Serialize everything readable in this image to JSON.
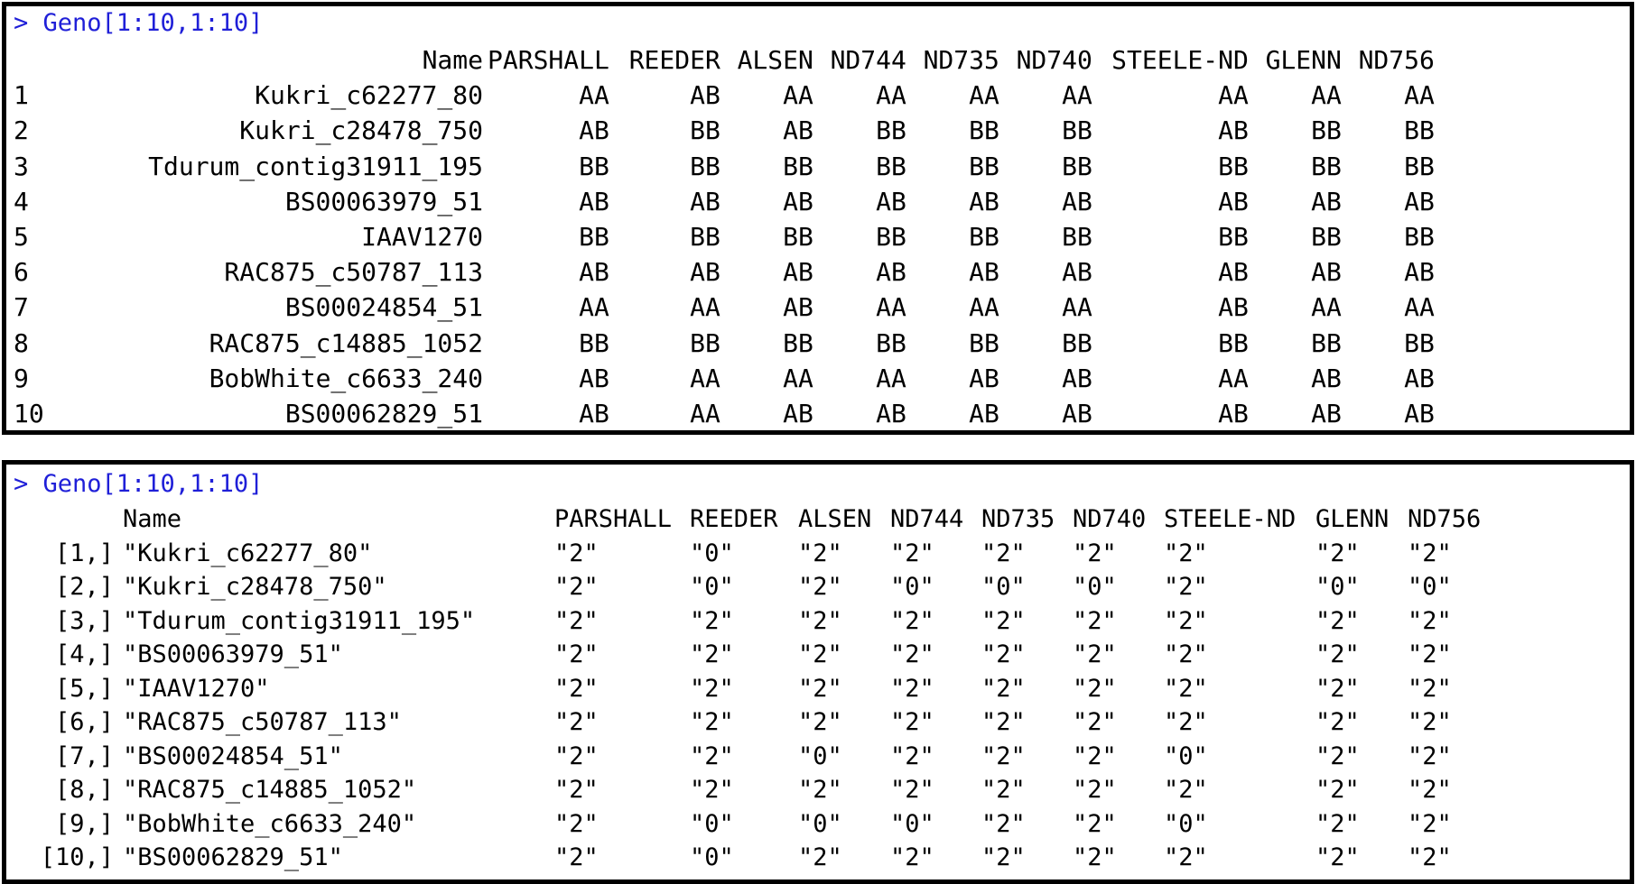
{
  "colors": {
    "prompt": "#1f1fd8",
    "text": "#000000",
    "border": "#000000"
  },
  "panel1": {
    "command": "> Geno[1:10,1:10]",
    "header": {
      "index": "",
      "name": "Name",
      "cols": [
        "PARSHALL",
        "REEDER",
        "ALSEN",
        "ND744",
        "ND735",
        "ND740",
        "STEELE-ND",
        "GLENN",
        "ND756"
      ]
    },
    "rows": [
      {
        "idx": "1",
        "name": "Kukri_c62277_80",
        "vals": [
          "AA",
          "AB",
          "AA",
          "AA",
          "AA",
          "AA",
          "AA",
          "AA",
          "AA"
        ]
      },
      {
        "idx": "2",
        "name": "Kukri_c28478_750",
        "vals": [
          "AB",
          "BB",
          "AB",
          "BB",
          "BB",
          "BB",
          "AB",
          "BB",
          "BB"
        ]
      },
      {
        "idx": "3",
        "name": "Tdurum_contig31911_195",
        "vals": [
          "BB",
          "BB",
          "BB",
          "BB",
          "BB",
          "BB",
          "BB",
          "BB",
          "BB"
        ]
      },
      {
        "idx": "4",
        "name": "BS00063979_51",
        "vals": [
          "AB",
          "AB",
          "AB",
          "AB",
          "AB",
          "AB",
          "AB",
          "AB",
          "AB"
        ]
      },
      {
        "idx": "5",
        "name": "IAAV1270",
        "vals": [
          "BB",
          "BB",
          "BB",
          "BB",
          "BB",
          "BB",
          "BB",
          "BB",
          "BB"
        ]
      },
      {
        "idx": "6",
        "name": "RAC875_c50787_113",
        "vals": [
          "AB",
          "AB",
          "AB",
          "AB",
          "AB",
          "AB",
          "AB",
          "AB",
          "AB"
        ]
      },
      {
        "idx": "7",
        "name": "BS00024854_51",
        "vals": [
          "AA",
          "AA",
          "AB",
          "AA",
          "AA",
          "AA",
          "AB",
          "AA",
          "AA"
        ]
      },
      {
        "idx": "8",
        "name": "RAC875_c14885_1052",
        "vals": [
          "BB",
          "BB",
          "BB",
          "BB",
          "BB",
          "BB",
          "BB",
          "BB",
          "BB"
        ]
      },
      {
        "idx": "9",
        "name": "BobWhite_c6633_240",
        "vals": [
          "AB",
          "AA",
          "AA",
          "AA",
          "AB",
          "AB",
          "AA",
          "AB",
          "AB"
        ]
      },
      {
        "idx": "10",
        "name": "BS00062829_51",
        "vals": [
          "AB",
          "AA",
          "AB",
          "AB",
          "AB",
          "AB",
          "AB",
          "AB",
          "AB"
        ]
      }
    ]
  },
  "panel2": {
    "command": "> Geno[1:10,1:10]",
    "header": {
      "index": "",
      "name": "Name",
      "cols": [
        "PARSHALL",
        "REEDER",
        "ALSEN",
        "ND744",
        "ND735",
        "ND740",
        "STEELE-ND",
        "GLENN",
        "ND756"
      ]
    },
    "rows": [
      {
        "idx": "[1,]",
        "name": "\"Kukri_c62277_80\"",
        "vals": [
          "\"2\"",
          "\"0\"",
          "\"2\"",
          "\"2\"",
          "\"2\"",
          "\"2\"",
          "\"2\"",
          "\"2\"",
          "\"2\""
        ]
      },
      {
        "idx": "[2,]",
        "name": "\"Kukri_c28478_750\"",
        "vals": [
          "\"2\"",
          "\"0\"",
          "\"2\"",
          "\"0\"",
          "\"0\"",
          "\"0\"",
          "\"2\"",
          "\"0\"",
          "\"0\""
        ]
      },
      {
        "idx": "[3,]",
        "name": "\"Tdurum_contig31911_195\"",
        "vals": [
          "\"2\"",
          "\"2\"",
          "\"2\"",
          "\"2\"",
          "\"2\"",
          "\"2\"",
          "\"2\"",
          "\"2\"",
          "\"2\""
        ]
      },
      {
        "idx": "[4,]",
        "name": "\"BS00063979_51\"",
        "vals": [
          "\"2\"",
          "\"2\"",
          "\"2\"",
          "\"2\"",
          "\"2\"",
          "\"2\"",
          "\"2\"",
          "\"2\"",
          "\"2\""
        ]
      },
      {
        "idx": "[5,]",
        "name": "\"IAAV1270\"",
        "vals": [
          "\"2\"",
          "\"2\"",
          "\"2\"",
          "\"2\"",
          "\"2\"",
          "\"2\"",
          "\"2\"",
          "\"2\"",
          "\"2\""
        ]
      },
      {
        "idx": "[6,]",
        "name": "\"RAC875_c50787_113\"",
        "vals": [
          "\"2\"",
          "\"2\"",
          "\"2\"",
          "\"2\"",
          "\"2\"",
          "\"2\"",
          "\"2\"",
          "\"2\"",
          "\"2\""
        ]
      },
      {
        "idx": "[7,]",
        "name": "\"BS00024854_51\"",
        "vals": [
          "\"2\"",
          "\"2\"",
          "\"0\"",
          "\"2\"",
          "\"2\"",
          "\"2\"",
          "\"0\"",
          "\"2\"",
          "\"2\""
        ]
      },
      {
        "idx": "[8,]",
        "name": "\"RAC875_c14885_1052\"",
        "vals": [
          "\"2\"",
          "\"2\"",
          "\"2\"",
          "\"2\"",
          "\"2\"",
          "\"2\"",
          "\"2\"",
          "\"2\"",
          "\"2\""
        ]
      },
      {
        "idx": "[9,]",
        "name": "\"BobWhite_c6633_240\"",
        "vals": [
          "\"2\"",
          "\"0\"",
          "\"0\"",
          "\"0\"",
          "\"2\"",
          "\"2\"",
          "\"0\"",
          "\"2\"",
          "\"2\""
        ]
      },
      {
        "idx": "[10,]",
        "name": "\"BS00062829_51\"",
        "vals": [
          "\"2\"",
          "\"0\"",
          "\"2\"",
          "\"2\"",
          "\"2\"",
          "\"2\"",
          "\"2\"",
          "\"2\"",
          "\"2\""
        ]
      }
    ]
  }
}
